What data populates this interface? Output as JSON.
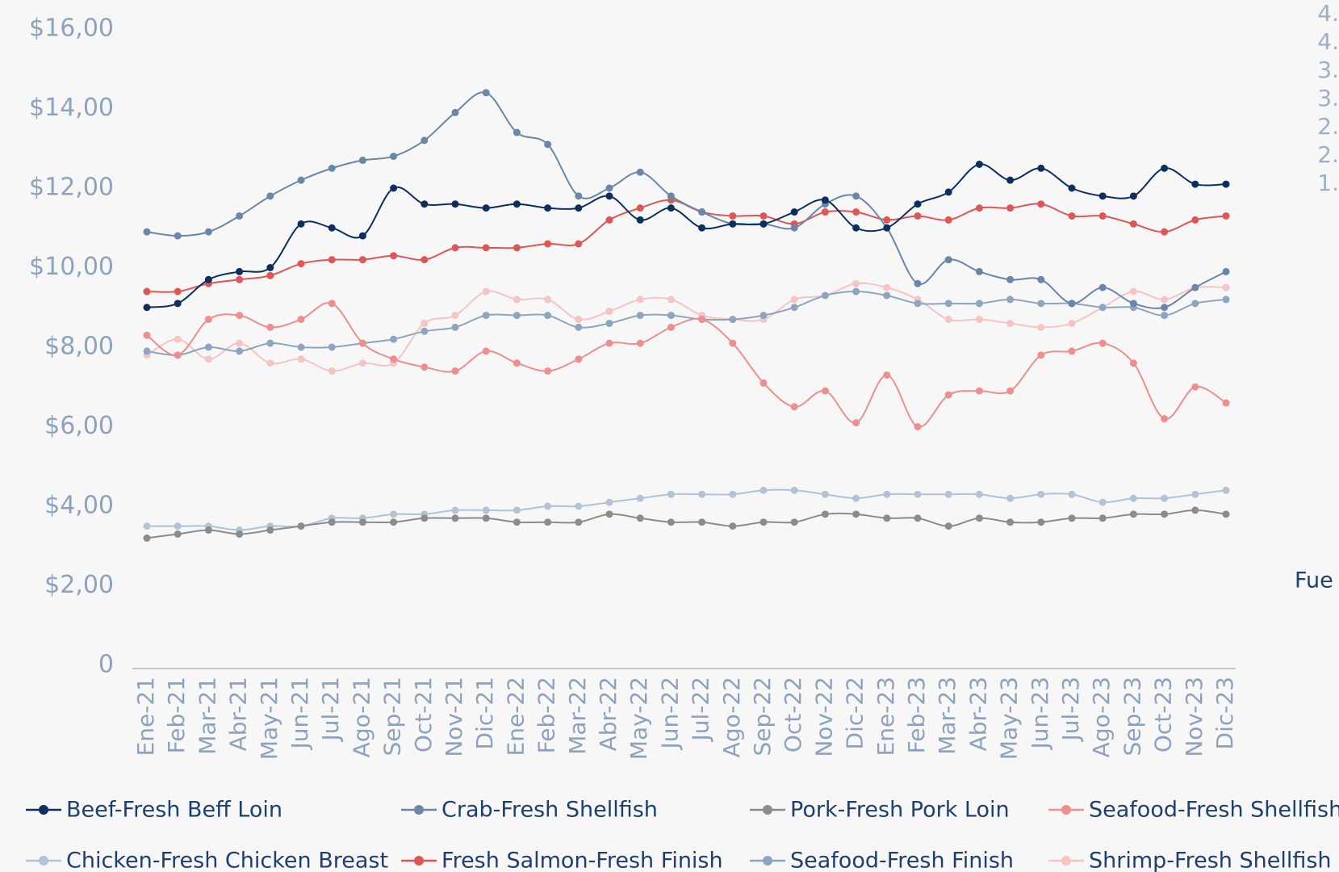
{
  "chart_data": {
    "type": "line",
    "categories": [
      "Ene-21",
      "Feb-21",
      "Mar-21",
      "Abr-21",
      "May-21",
      "Jun-21",
      "Jul-21",
      "Ago-21",
      "Sep-21",
      "Oct-21",
      "Nov-21",
      "Dic-21",
      "Ene-22",
      "Feb-22",
      "Mar-22",
      "Abr-22",
      "May-22",
      "Jun-22",
      "Jul-22",
      "Ago-22",
      "Sep-22",
      "Oct-22",
      "Nov-22",
      "Dic-22",
      "Ene-23",
      "Feb-23",
      "Mar-23",
      "Abr-23",
      "May-23",
      "Jun-23",
      "Jul-23",
      "Ago-23",
      "Sep-23",
      "Oct-23",
      "Nov-23",
      "Dic-23"
    ],
    "series": [
      {
        "name": "Beef-Fresh Beff Loin",
        "color": "#0d2f5e",
        "values": [
          9.0,
          9.1,
          9.7,
          9.9,
          10.0,
          11.1,
          11.0,
          10.8,
          12.0,
          11.6,
          11.6,
          11.5,
          11.6,
          11.5,
          11.5,
          11.8,
          11.2,
          11.5,
          11.0,
          11.1,
          11.1,
          11.4,
          11.7,
          11.0,
          11.0,
          11.6,
          11.9,
          12.6,
          12.2,
          12.5,
          12.0,
          11.8,
          11.8,
          12.5,
          12.1,
          12.1
        ]
      },
      {
        "name": "Crab-Fresh Shellfish",
        "color": "#6a87a8",
        "values": [
          10.9,
          10.8,
          10.9,
          11.3,
          11.8,
          12.2,
          12.5,
          12.7,
          12.8,
          13.2,
          13.9,
          14.4,
          13.4,
          13.1,
          11.8,
          12.0,
          12.4,
          11.8,
          11.4,
          11.1,
          11.1,
          11.0,
          11.6,
          11.8,
          11.0,
          9.6,
          10.2,
          9.9,
          9.7,
          9.7,
          9.1,
          9.5,
          9.1,
          9.0,
          9.5,
          9.9
        ]
      },
      {
        "name": "Pork-Fresh Pork Loin",
        "color": "#8c8c8c",
        "values": [
          3.2,
          3.3,
          3.4,
          3.3,
          3.4,
          3.5,
          3.6,
          3.6,
          3.6,
          3.7,
          3.7,
          3.7,
          3.6,
          3.6,
          3.6,
          3.8,
          3.7,
          3.6,
          3.6,
          3.5,
          3.6,
          3.6,
          3.8,
          3.8,
          3.7,
          3.7,
          3.5,
          3.7,
          3.6,
          3.6,
          3.7,
          3.7,
          3.8,
          3.8,
          3.9,
          3.8
        ]
      },
      {
        "name": "Seafood-Fresh Shellfish",
        "color": "#ee8e8e",
        "values": [
          8.3,
          7.8,
          8.7,
          8.8,
          8.5,
          8.7,
          9.1,
          8.1,
          7.7,
          7.5,
          7.4,
          7.9,
          7.6,
          7.4,
          7.7,
          8.1,
          8.1,
          8.5,
          8.7,
          8.1,
          7.1,
          6.5,
          6.9,
          6.1,
          7.3,
          6.0,
          6.8,
          6.9,
          6.9,
          7.8,
          7.9,
          8.1,
          7.6,
          6.2,
          7.0,
          6.6
        ]
      },
      {
        "name": "Chicken-Fresh Chicken Breast",
        "color": "#b3c3d6",
        "values": [
          3.5,
          3.5,
          3.5,
          3.4,
          3.5,
          3.5,
          3.7,
          3.7,
          3.8,
          3.8,
          3.9,
          3.9,
          3.9,
          4.0,
          4.0,
          4.1,
          4.2,
          4.3,
          4.3,
          4.3,
          4.4,
          4.4,
          4.3,
          4.2,
          4.3,
          4.3,
          4.3,
          4.3,
          4.2,
          4.3,
          4.3,
          4.1,
          4.2,
          4.2,
          4.3,
          4.4
        ]
      },
      {
        "name": "Fresh Salmon-Fresh Finish",
        "color": "#e05555",
        "values": [
          9.4,
          9.4,
          9.6,
          9.7,
          9.8,
          10.1,
          10.2,
          10.2,
          10.3,
          10.2,
          10.5,
          10.5,
          10.5,
          10.6,
          10.6,
          11.2,
          11.5,
          11.7,
          11.4,
          11.3,
          11.3,
          11.1,
          11.4,
          11.4,
          11.2,
          11.3,
          11.2,
          11.5,
          11.5,
          11.6,
          11.3,
          11.3,
          11.1,
          10.9,
          11.2,
          11.3
        ]
      },
      {
        "name": "Seafood-Fresh Finish",
        "color": "#8fa5bf",
        "values": [
          7.9,
          7.8,
          8.0,
          7.9,
          8.1,
          8.0,
          8.0,
          8.1,
          8.2,
          8.4,
          8.5,
          8.8,
          8.8,
          8.8,
          8.5,
          8.6,
          8.8,
          8.8,
          8.7,
          8.7,
          8.8,
          9.0,
          9.3,
          9.4,
          9.3,
          9.1,
          9.1,
          9.1,
          9.2,
          9.1,
          9.1,
          9.0,
          9.0,
          8.8,
          9.1,
          9.2
        ]
      },
      {
        "name": "Shrimp-Fresh Shellfish",
        "color": "#f6c4c4",
        "values": [
          7.8,
          8.2,
          7.7,
          8.1,
          7.6,
          7.7,
          7.4,
          7.6,
          7.6,
          8.6,
          8.8,
          9.4,
          9.2,
          9.2,
          8.7,
          8.9,
          9.2,
          9.2,
          8.8,
          8.7,
          8.7,
          9.2,
          9.3,
          9.6,
          9.5,
          9.2,
          8.7,
          8.7,
          8.6,
          8.5,
          8.6,
          9.0,
          9.4,
          9.2,
          9.5,
          9.5
        ]
      }
    ],
    "ylim": [
      0,
      16
    ],
    "yticks": [
      0,
      {
        "value": 2,
        "label": "$2,00"
      },
      {
        "value": 4,
        "label": "$4,00"
      },
      {
        "value": 6,
        "label": "$6,00"
      },
      {
        "value": 8,
        "label": "$8,00"
      },
      {
        "value": 10,
        "label": "$10,00"
      },
      {
        "value": 12,
        "label": "$12,00"
      },
      {
        "value": 14,
        "label": "$14,00"
      },
      {
        "value": 16,
        "label": "$16,00"
      }
    ],
    "grid": false,
    "legend": "bottom",
    "side_labels": [
      "4.",
      "4.",
      "3.",
      "3.",
      "2.",
      "2.",
      "1."
    ],
    "side_note": "Fue"
  }
}
